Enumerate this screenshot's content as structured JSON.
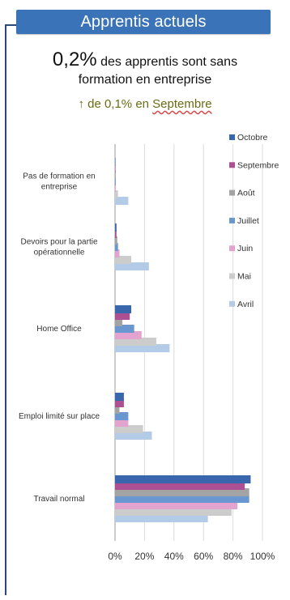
{
  "header": {
    "title": "Apprentis actuels"
  },
  "headline": {
    "big_value": "0,2%",
    "text_line1": "des apprentis sont sans",
    "text_line2": "formation en entreprise",
    "trend_prefix": "↑ de 0,1% en",
    "trend_month": "Septembre"
  },
  "colors": {
    "header": "#3a73b8",
    "frame": "#2a4a7a",
    "trend_text": "#6b6b14"
  },
  "chart_data": {
    "type": "bar",
    "orientation": "horizontal",
    "categories": [
      [
        "Pas de formation en",
        "entreprise"
      ],
      [
        "Devoirs pour la partie",
        "opérationnelle"
      ],
      [
        "Home Office"
      ],
      [
        "Emploi limité sur place"
      ],
      [
        "Travail normal"
      ]
    ],
    "series": [
      {
        "name": "Octobre",
        "color": "#3a66ad",
        "values": [
          0.2,
          1,
          11,
          6,
          92
        ]
      },
      {
        "name": "Septembre",
        "color": "#ad4f93",
        "values": [
          0.2,
          1,
          10,
          6,
          88
        ]
      },
      {
        "name": "Août",
        "color": "#a3a3a3",
        "values": [
          0.5,
          1.5,
          5,
          3,
          91
        ]
      },
      {
        "name": "Juillet",
        "color": "#6a97cf",
        "values": [
          0.5,
          2,
          13,
          9,
          91
        ]
      },
      {
        "name": "Juin",
        "color": "#e2a3cf",
        "values": [
          0.5,
          3,
          18,
          9,
          83
        ]
      },
      {
        "name": "Mai",
        "color": "#cccccc",
        "values": [
          2,
          11,
          28,
          19,
          79
        ]
      },
      {
        "name": "Avril",
        "color": "#b3cbe6",
        "values": [
          9,
          23,
          37,
          25,
          63
        ]
      }
    ],
    "xticks": [
      "0%",
      "20%",
      "40%",
      "60%",
      "80%",
      "100%"
    ],
    "xlim": [
      0,
      100
    ],
    "grid": true,
    "legend_position": "right"
  }
}
